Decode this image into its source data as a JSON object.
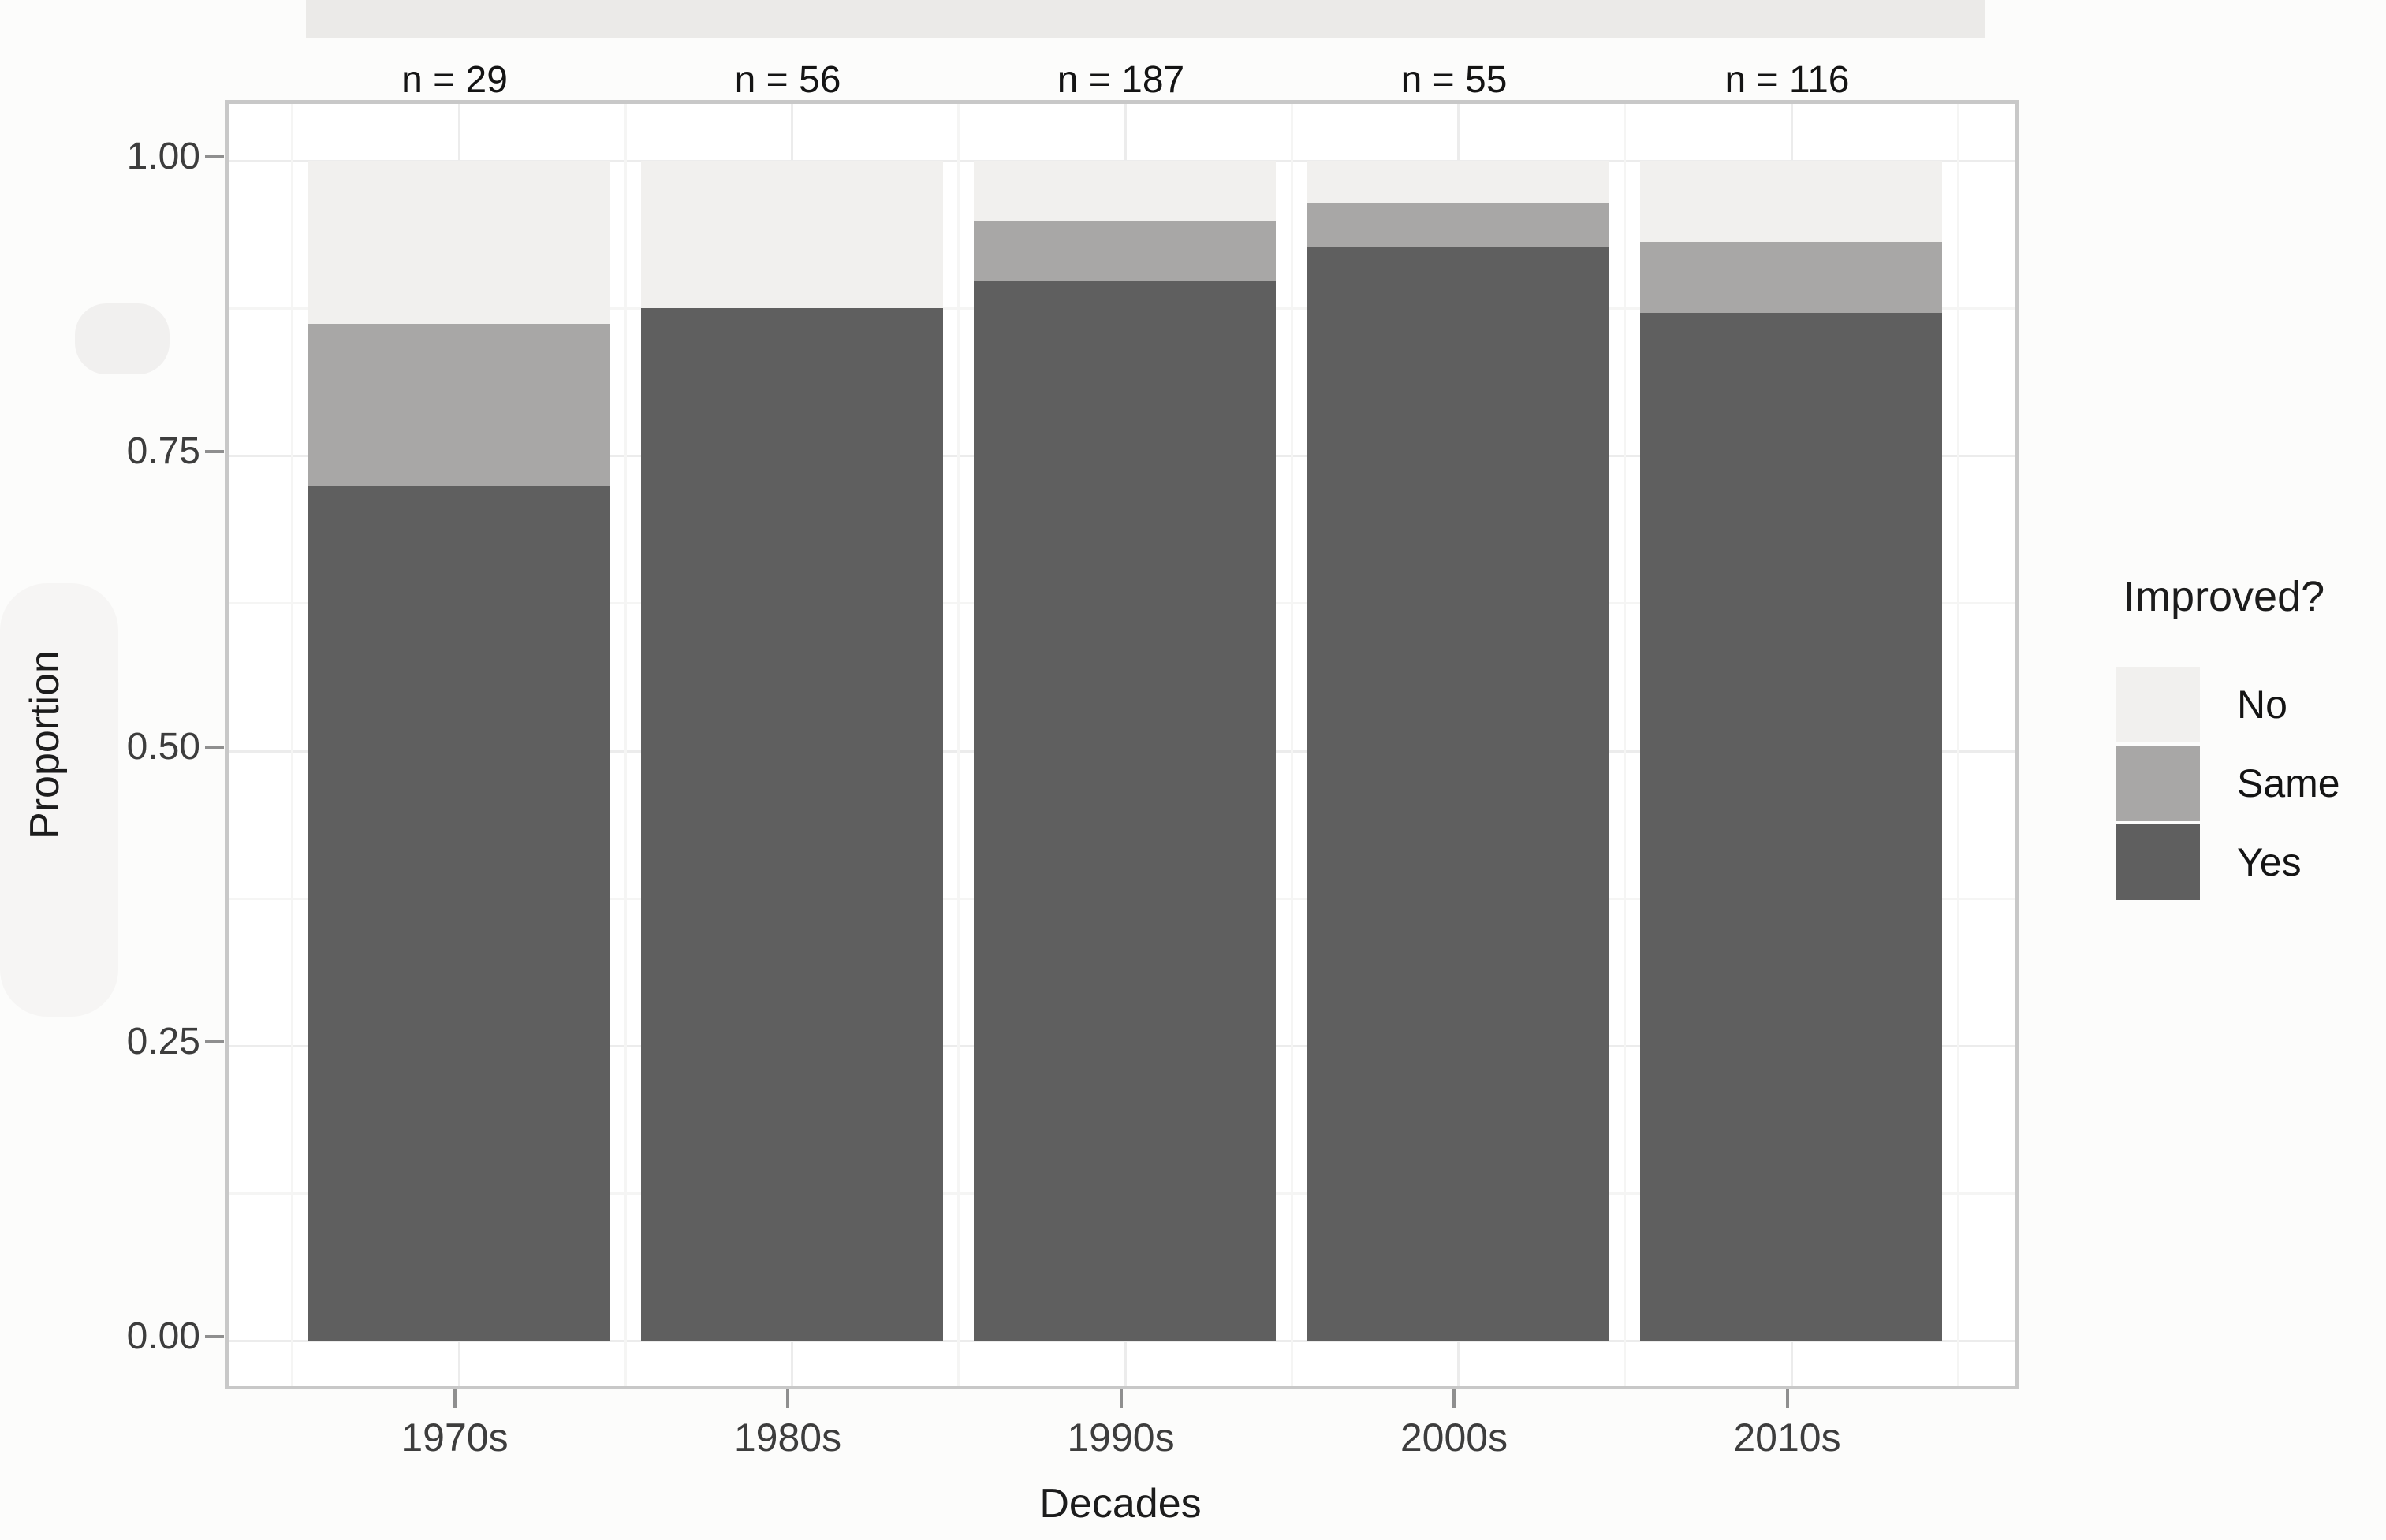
{
  "chart_data": {
    "type": "bar",
    "stacked": true,
    "orientation": "vertical",
    "categories": [
      "1970s",
      "1980s",
      "1990s",
      "2000s",
      "2010s"
    ],
    "bar_count_labels": [
      "n = 29",
      "n = 56",
      "n = 187",
      "n = 55",
      "n = 116"
    ],
    "series": [
      {
        "name": "Yes",
        "values": [
          0.724,
          0.875,
          0.898,
          0.927,
          0.871
        ]
      },
      {
        "name": "Same",
        "values": [
          0.138,
          0.0,
          0.051,
          0.037,
          0.06
        ]
      },
      {
        "name": "No",
        "values": [
          0.138,
          0.125,
          0.051,
          0.036,
          0.069
        ]
      }
    ],
    "xlabel": "Decades",
    "ylabel": "Proportion",
    "ylim": [
      0,
      1
    ],
    "yticks": [
      {
        "label": "1.00",
        "value": 1.0
      },
      {
        "label": "0.75",
        "value": 0.75
      },
      {
        "label": "0.50",
        "value": 0.5
      },
      {
        "label": "0.25",
        "value": 0.25
      },
      {
        "label": "0.00",
        "value": 0.0
      }
    ],
    "grid": "major-and-minor",
    "legend_position": "right",
    "legend": {
      "title": "Improved?",
      "entries": [
        "No",
        "Same",
        "Yes"
      ]
    },
    "colors": {
      "No": "#f1f0ee",
      "Same": "#a8a7a6",
      "Yes": "#5f5f5f"
    }
  }
}
